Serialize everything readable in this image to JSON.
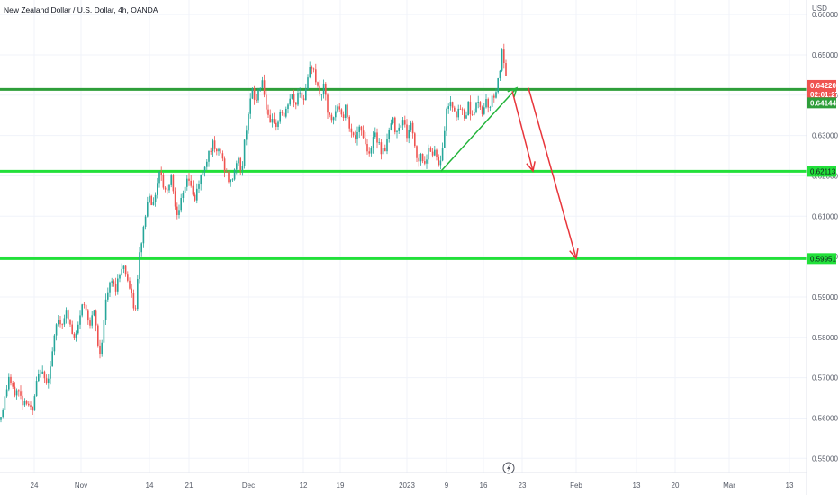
{
  "chart_data": {
    "type": "candlestick",
    "title": "New Zealand Dollar / U.S. Dollar, 4h, OANDA",
    "currency_label": "USD",
    "y_ticks": [
      "0.66000",
      "0.65000",
      "0.64000",
      "0.63000",
      "0.62000",
      "0.61000",
      "0.60000",
      "0.59000",
      "0.58000",
      "0.57000",
      "0.56000",
      "0.55000"
    ],
    "ylim": [
      0.5465,
      0.6636
    ],
    "x_ticks": [
      "24",
      "Nov",
      "14",
      "21",
      "Dec",
      "12",
      "19",
      "2023",
      "9",
      "16",
      "23",
      "Feb",
      "13",
      "20",
      "Mar",
      "13"
    ],
    "grid": true,
    "price_badges": {
      "last_price": "0.64220",
      "countdown": "02:01:27",
      "line_price": "0.64144",
      "support_1": "0.62113",
      "support_2": "0.59951"
    },
    "horizontal_lines": [
      {
        "name": "resistance",
        "value": 0.64144,
        "color": "#2e9e3a"
      },
      {
        "name": "support-1",
        "value": 0.62113,
        "color": "#22e03a"
      },
      {
        "name": "support-2",
        "value": 0.59951,
        "color": "#22e03a"
      }
    ],
    "price_path": [
      [
        0,
        0.5595
      ],
      [
        6,
        0.5655
      ],
      [
        10,
        0.5705
      ],
      [
        15,
        0.566
      ],
      [
        20,
        0.567
      ],
      [
        25,
        0.564
      ],
      [
        30,
        0.5645
      ],
      [
        36,
        0.561
      ],
      [
        40,
        0.568
      ],
      [
        45,
        0.572
      ],
      [
        50,
        0.569
      ],
      [
        55,
        0.571
      ],
      [
        60,
        0.579
      ],
      [
        64,
        0.585
      ],
      [
        68,
        0.583
      ],
      [
        73,
        0.5865
      ],
      [
        78,
        0.583
      ],
      [
        82,
        0.579
      ],
      [
        86,
        0.5815
      ],
      [
        90,
        0.5875
      ],
      [
        95,
        0.588
      ],
      [
        100,
        0.583
      ],
      [
        105,
        0.5865
      ],
      [
        110,
        0.575
      ],
      [
        113,
        0.579
      ],
      [
        117,
        0.588
      ],
      [
        120,
        0.5915
      ],
      [
        124,
        0.594
      ],
      [
        128,
        0.592
      ],
      [
        132,
        0.595
      ],
      [
        136,
        0.5985
      ],
      [
        140,
        0.596
      ],
      [
        144,
        0.592
      ],
      [
        148,
        0.588
      ],
      [
        151,
        0.5865
      ],
      [
        154,
        0.599
      ],
      [
        158,
        0.605
      ],
      [
        162,
        0.611
      ],
      [
        166,
        0.616
      ],
      [
        170,
        0.612
      ],
      [
        174,
        0.618
      ],
      [
        178,
        0.622
      ],
      [
        182,
        0.617
      ],
      [
        186,
        0.616
      ],
      [
        190,
        0.621
      ],
      [
        193,
        0.615
      ],
      [
        196,
        0.611
      ],
      [
        200,
        0.613
      ],
      [
        204,
        0.615
      ],
      [
        208,
        0.62
      ],
      [
        212,
        0.618
      ],
      [
        216,
        0.613
      ],
      [
        220,
        0.618
      ],
      [
        224,
        0.62
      ],
      [
        228,
        0.623
      ],
      [
        232,
        0.626
      ],
      [
        236,
        0.628
      ],
      [
        240,
        0.625
      ],
      [
        244,
        0.627
      ],
      [
        248,
        0.623
      ],
      [
        252,
        0.62
      ],
      [
        256,
        0.618
      ],
      [
        260,
        0.621
      ],
      [
        264,
        0.625
      ],
      [
        268,
        0.62
      ],
      [
        272,
        0.629
      ],
      [
        276,
        0.636
      ],
      [
        280,
        0.641
      ],
      [
        284,
        0.638
      ],
      [
        288,
        0.642
      ],
      [
        292,
        0.644
      ],
      [
        296,
        0.636
      ],
      [
        300,
        0.632
      ],
      [
        304,
        0.634
      ],
      [
        308,
        0.632
      ],
      [
        312,
        0.637
      ],
      [
        316,
        0.634
      ],
      [
        320,
        0.638
      ],
      [
        324,
        0.64
      ],
      [
        328,
        0.637
      ],
      [
        332,
        0.642
      ],
      [
        336,
        0.639
      ],
      [
        340,
        0.641
      ],
      [
        344,
        0.646
      ],
      [
        348,
        0.648
      ],
      [
        352,
        0.642
      ],
      [
        356,
        0.64
      ],
      [
        360,
        0.642
      ],
      [
        364,
        0.636
      ],
      [
        368,
        0.633
      ],
      [
        372,
        0.635
      ],
      [
        376,
        0.638
      ],
      [
        380,
        0.634
      ],
      [
        384,
        0.637
      ],
      [
        388,
        0.633
      ],
      [
        392,
        0.63
      ],
      [
        396,
        0.629
      ],
      [
        400,
        0.632
      ],
      [
        404,
        0.63
      ],
      [
        408,
        0.626
      ],
      [
        412,
        0.627
      ],
      [
        416,
        0.63
      ],
      [
        420,
        0.629
      ],
      [
        424,
        0.626
      ],
      [
        428,
        0.627
      ],
      [
        432,
        0.631
      ],
      [
        436,
        0.634
      ],
      [
        440,
        0.631
      ],
      [
        444,
        0.633
      ],
      [
        448,
        0.634
      ],
      [
        452,
        0.63
      ],
      [
        456,
        0.633
      ],
      [
        460,
        0.629
      ],
      [
        464,
        0.623
      ],
      [
        468,
        0.626
      ],
      [
        472,
        0.622
      ],
      [
        476,
        0.628
      ],
      [
        480,
        0.625
      ],
      [
        484,
        0.627
      ],
      [
        488,
        0.621
      ],
      [
        492,
        0.628
      ],
      [
        496,
        0.636
      ],
      [
        500,
        0.639
      ],
      [
        504,
        0.637
      ],
      [
        508,
        0.635
      ],
      [
        512,
        0.637
      ],
      [
        516,
        0.634
      ],
      [
        520,
        0.638
      ],
      [
        524,
        0.635
      ],
      [
        528,
        0.637
      ],
      [
        532,
        0.638
      ],
      [
        536,
        0.636
      ],
      [
        540,
        0.639
      ],
      [
        544,
        0.637
      ],
      [
        548,
        0.64
      ],
      [
        552,
        0.642
      ],
      [
        555,
        0.646
      ],
      [
        558,
        0.651
      ],
      [
        560,
        0.648
      ],
      [
        562,
        0.644
      ],
      [
        564,
        0.6422
      ]
    ],
    "arrows": [
      {
        "name": "trend-arrow",
        "color": "#22b43a",
        "from": [
          490,
          0.6212
        ],
        "to": [
          574,
          0.6418
        ]
      },
      {
        "name": "drop-arrow-1",
        "color": "#e8353b",
        "from": [
          569,
          0.641
        ],
        "to": [
          592,
          0.6212
        ]
      },
      {
        "name": "drop-arrow-2",
        "color": "#e8353b",
        "from": [
          587,
          0.6418
        ],
        "to": [
          640,
          0.5996
        ]
      }
    ]
  }
}
